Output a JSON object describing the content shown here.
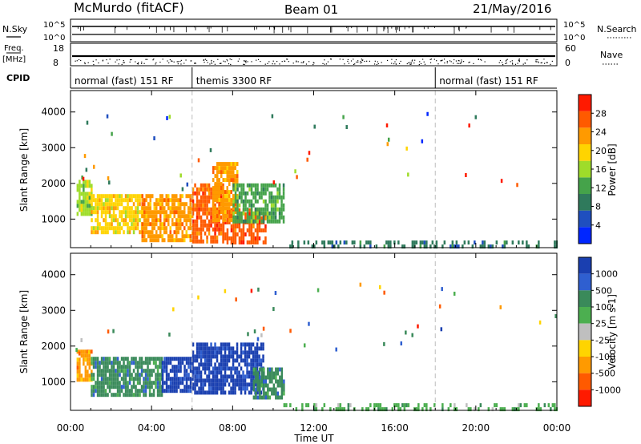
{
  "header": {
    "station": "McMurdo (fitACF)",
    "beam": "Beam 01",
    "date": "21/May/2016"
  },
  "status_panels": {
    "nsky_label": "N.Sky",
    "nsearch_label": "N.Search",
    "nsky_ticks": [
      "10^5",
      "10^0"
    ],
    "nsearch_ticks": [
      "10^5",
      "10^0"
    ],
    "freq_label_top": "Freq.",
    "freq_label_unit": "[MHz]",
    "freq_ticks": [
      "18",
      "8"
    ],
    "nave_label": "Nave",
    "nave_ticks": [
      "60",
      "0"
    ],
    "cpid_label": "CPID",
    "cpid_segments": [
      {
        "label": "normal (fast) 151 RF",
        "start_hour": 0,
        "end_hour": 6
      },
      {
        "label": "themis 3300 RF",
        "start_hour": 6,
        "end_hour": 18
      },
      {
        "label": "normal (fast) 151 RF",
        "start_hour": 18,
        "end_hour": 24
      }
    ]
  },
  "chart_data": [
    {
      "type": "heatmap",
      "name": "power",
      "ylabel": "Slant Range [km]",
      "ylim": [
        200,
        4600
      ],
      "yticks": [
        1000,
        2000,
        3000,
        4000
      ],
      "xlim": [
        0,
        24
      ],
      "colorbar": {
        "label": "Power [dB]",
        "range": [
          0,
          32
        ],
        "ticks": [
          4,
          8,
          12,
          16,
          20,
          24,
          28
        ],
        "colors": [
          "#0026ff",
          "#1f4fbf",
          "#2f7a5c",
          "#45a34a",
          "#9fdc2a",
          "#ffd400",
          "#ff9a00",
          "#ff5a00",
          "#ff1a00"
        ]
      },
      "regions": [
        {
          "start_hour": 0.3,
          "end_hour": 1.0,
          "range_min": 1100,
          "range_max": 2100,
          "value": 16
        },
        {
          "start_hour": 1.0,
          "end_hour": 3.5,
          "range_min": 600,
          "range_max": 1700,
          "value": 18
        },
        {
          "start_hour": 3.5,
          "end_hour": 6.0,
          "range_min": 400,
          "range_max": 1700,
          "value": 24
        },
        {
          "start_hour": 6.0,
          "end_hour": 7.5,
          "range_min": 400,
          "range_max": 2000,
          "value": 26
        },
        {
          "start_hour": 7.5,
          "end_hour": 9.6,
          "range_min": 300,
          "range_max": 1300,
          "value": 28
        },
        {
          "start_hour": 7.0,
          "end_hour": 8.2,
          "range_min": 1000,
          "range_max": 2600,
          "value": 24
        },
        {
          "start_hour": 8.0,
          "end_hour": 10.5,
          "range_min": 900,
          "range_max": 2000,
          "value": 12
        },
        {
          "start_hour": 10.5,
          "end_hour": 24.0,
          "range_min": 200,
          "range_max": 400,
          "value": 8
        }
      ]
    },
    {
      "type": "heatmap",
      "name": "velocity",
      "ylabel": "Slant Range [km]",
      "xlabel": "Time UT",
      "ylim": [
        200,
        4600
      ],
      "yticks": [
        1000,
        2000,
        3000,
        4000
      ],
      "xlim": [
        0,
        24
      ],
      "xtick_labels": [
        "00:00",
        "04:00",
        "08:00",
        "12:00",
        "16:00",
        "20:00",
        "00:00"
      ],
      "colorbar": {
        "label": "Velocity [m s-1]",
        "tick_labels": [
          "1000",
          "500",
          "100",
          "25",
          "-25",
          "-100",
          "-500",
          "-1000"
        ],
        "colors": [
          "#1a3fb0",
          "#2f5fd0",
          "#3a8a5a",
          "#4caf50",
          "#bfbfbf",
          "#ffd400",
          "#ff9a00",
          "#ff5a00",
          "#ff1a00"
        ]
      },
      "regions": [
        {
          "start_hour": 0.3,
          "end_hour": 1.0,
          "range_min": 1100,
          "range_max": 1900,
          "value": -500
        },
        {
          "start_hour": 1.0,
          "end_hour": 4.5,
          "range_min": 600,
          "range_max": 1700,
          "value": 100
        },
        {
          "start_hour": 4.5,
          "end_hour": 6.0,
          "range_min": 800,
          "range_max": 1700,
          "value": 1000
        },
        {
          "start_hour": 6.0,
          "end_hour": 9.5,
          "range_min": 700,
          "range_max": 2100,
          "value": 1000
        },
        {
          "start_hour": 9.0,
          "end_hour": 10.5,
          "range_min": 600,
          "range_max": 1400,
          "value": 100
        },
        {
          "start_hour": 10.5,
          "end_hour": 24.0,
          "range_min": 200,
          "range_max": 400,
          "value": 25
        }
      ]
    }
  ],
  "time_axis": {
    "label": "Time UT",
    "tick_labels": [
      "00:00",
      "04:00",
      "08:00",
      "12:00",
      "16:00",
      "20:00",
      "00:00"
    ],
    "dashed_lines_hours": [
      6,
      18
    ]
  }
}
